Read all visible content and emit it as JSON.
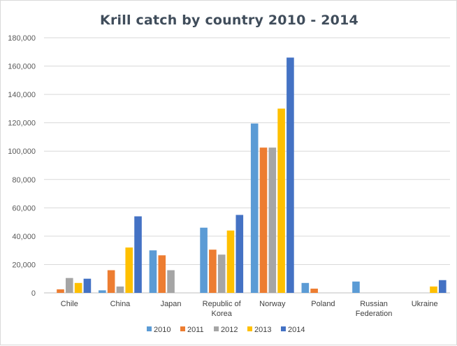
{
  "chart_data": {
    "type": "bar",
    "title": "Krill catch by country 2010 - 2014",
    "xlabel": "",
    "ylabel": "",
    "ylim": [
      0,
      180000
    ],
    "ytick_labels": [
      "0",
      "20,000",
      "40,000",
      "60,000",
      "80,000",
      "100,000",
      "120,000",
      "140,000",
      "160,000",
      "180,000"
    ],
    "grid": true,
    "legend_position": "bottom",
    "categories": [
      [
        "Chile"
      ],
      [
        "China"
      ],
      [
        "Japan"
      ],
      [
        "Republic of",
        "Korea"
      ],
      [
        "Norway"
      ],
      [
        "Poland"
      ],
      [
        "Russian",
        "Federation"
      ],
      [
        "Ukraine"
      ]
    ],
    "series": [
      {
        "name": "2010",
        "color": "#5b9bd5",
        "values": [
          0,
          1800,
          30000,
          46000,
          119500,
          7000,
          8000,
          0
        ]
      },
      {
        "name": "2011",
        "color": "#ed7d31",
        "values": [
          2500,
          16000,
          26500,
          30500,
          102500,
          3000,
          0,
          0
        ]
      },
      {
        "name": "2012",
        "color": "#a5a5a5",
        "values": [
          10500,
          4500,
          16000,
          27000,
          102500,
          0,
          0,
          0
        ]
      },
      {
        "name": "2013",
        "color": "#ffc000",
        "values": [
          7000,
          32000,
          0,
          44000,
          130000,
          0,
          0,
          4500
        ]
      },
      {
        "name": "2014",
        "color": "#4472c4",
        "values": [
          10000,
          54000,
          0,
          55000,
          166000,
          0,
          0,
          9000
        ]
      }
    ]
  }
}
